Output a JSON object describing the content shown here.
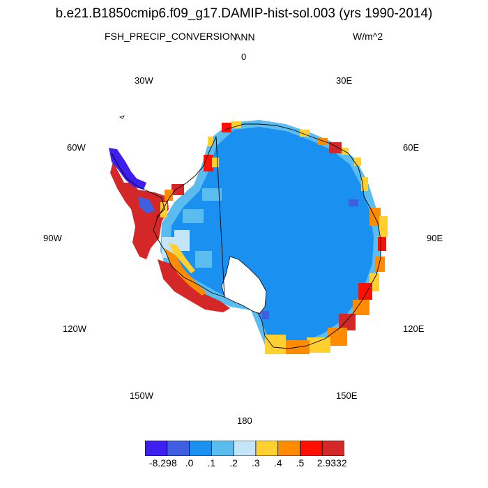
{
  "title": "b.e21.B1850cmip6.f09_g17.DAMIP-hist-sol.003 (yrs 1990-2014)",
  "field_name": "FSH_PRECIP_CONVERSION",
  "season": "ANN",
  "units": "W/m^2",
  "longitude_labels": {
    "lon_0": "0",
    "lon_30e": "30E",
    "lon_60e": "60E",
    "lon_90e": "90E",
    "lon_120e": "120E",
    "lon_150e": "150E",
    "lon_180": "180",
    "lon_150w": "150W",
    "lon_120w": "120W",
    "lon_90w": "90W",
    "lon_60w": "60W",
    "lon_30w": "30W"
  },
  "colorbar": {
    "colors": [
      "#3f1ff0",
      "#3f5fe0",
      "#1a90f0",
      "#5bbcf0",
      "#c4e4f8",
      "#ffd030",
      "#ff8c00",
      "#ff1000",
      "#d42828"
    ],
    "labels": [
      "-8.298",
      ".0",
      ".1",
      ".2",
      ".3",
      ".4",
      ".5",
      "2.9332"
    ]
  },
  "map_colors": {
    "ocean": "#ffffff",
    "interior": "#1a90f0",
    "coast_ring": "#5bbcf0",
    "coast_outline": "#000000"
  }
}
